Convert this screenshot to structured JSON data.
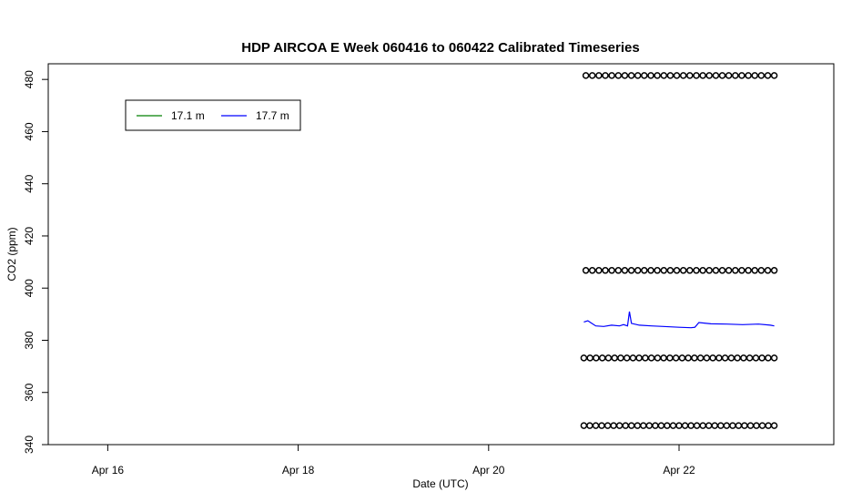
{
  "chart_data": {
    "type": "line",
    "title": "HDP AIRCOA E  Week 060416 to 060422  Calibrated Timeseries",
    "xlabel": "Date (UTC)",
    "ylabel": "CO2 (ppm)",
    "xlim": [
      "2006-04-15T09:00",
      "2006-04-23T15:00"
    ],
    "ylim": [
      340,
      486
    ],
    "x_ticks": [
      {
        "date": "2006-04-16T00:00",
        "label": "Apr 16"
      },
      {
        "date": "2006-04-18T00:00",
        "label": "Apr 18"
      },
      {
        "date": "2006-04-20T00:00",
        "label": "Apr 20"
      },
      {
        "date": "2006-04-22T00:00",
        "label": "Apr 22"
      }
    ],
    "y_ticks": [
      340,
      360,
      380,
      400,
      420,
      440,
      460,
      480
    ],
    "grid": false,
    "legend": {
      "placement": "top-left",
      "entries": [
        {
          "name": "17.1 m",
          "color": "#008000"
        },
        {
          "name": "17.7 m",
          "color": "#0000ff"
        }
      ]
    },
    "series": [
      {
        "name": "17.7 m",
        "color": "#0000ff",
        "style": "line",
        "points": [
          [
            "2006-04-21T00:00",
            387
          ],
          [
            "2006-04-21T01:00",
            387.5
          ],
          [
            "2006-04-21T02:00",
            386.5
          ],
          [
            "2006-04-21T03:00",
            385.5
          ],
          [
            "2006-04-21T05:00",
            385.3
          ],
          [
            "2006-04-21T07:00",
            385.8
          ],
          [
            "2006-04-21T09:00",
            385.5
          ],
          [
            "2006-04-21T10:00",
            386
          ],
          [
            "2006-04-21T11:00",
            385.5
          ],
          [
            "2006-04-21T11:30",
            391
          ],
          [
            "2006-04-21T12:00",
            386.5
          ],
          [
            "2006-04-21T14:00",
            385.8
          ],
          [
            "2006-04-21T17:00",
            385.5
          ],
          [
            "2006-04-21T20:00",
            385.3
          ],
          [
            "2006-04-22T00:00",
            385
          ],
          [
            "2006-04-22T03:00",
            384.8
          ],
          [
            "2006-04-22T04:00",
            385
          ],
          [
            "2006-04-22T05:00",
            386.8
          ],
          [
            "2006-04-22T08:00",
            386.3
          ],
          [
            "2006-04-22T12:00",
            386.2
          ],
          [
            "2006-04-22T16:00",
            386
          ],
          [
            "2006-04-22T20:00",
            386.2
          ],
          [
            "2006-04-22T23:00",
            385.8
          ],
          [
            "2006-04-23T00:00",
            385.5
          ]
        ]
      },
      {
        "name": "",
        "color": "#000000",
        "style": "points",
        "marker": "circle",
        "rows": [
          {
            "y": 481.5,
            "x_start": "2006-04-21T00:30",
            "x_end": "2006-04-23T00:00",
            "count": 30
          },
          {
            "y": 406.8,
            "x_start": "2006-04-21T00:30",
            "x_end": "2006-04-23T00:00",
            "count": 30
          },
          {
            "y": 373.2,
            "x_start": "2006-04-21T00:00",
            "x_end": "2006-04-23T00:00",
            "count": 32
          },
          {
            "y": 347.3,
            "x_start": "2006-04-21T00:00",
            "x_end": "2006-04-23T00:00",
            "count": 33
          }
        ]
      }
    ]
  }
}
